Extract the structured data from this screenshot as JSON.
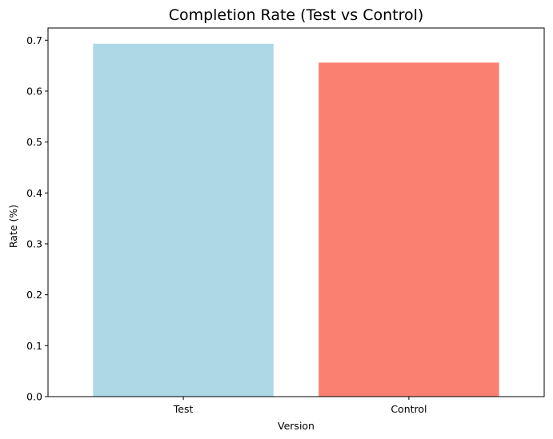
{
  "chart_data": {
    "type": "bar",
    "title": "Completion Rate (Test vs Control)",
    "xlabel": "Version",
    "ylabel": "Rate (%)",
    "categories": [
      "Test",
      "Control"
    ],
    "values": [
      0.693,
      0.656
    ],
    "colors": [
      "#add8e6",
      "#fa8072"
    ],
    "ylim": [
      0,
      0.724
    ],
    "yticks": [
      "0.0",
      "0.1",
      "0.2",
      "0.3",
      "0.4",
      "0.5",
      "0.6",
      "0.7"
    ],
    "grid": false,
    "legend": "none"
  }
}
